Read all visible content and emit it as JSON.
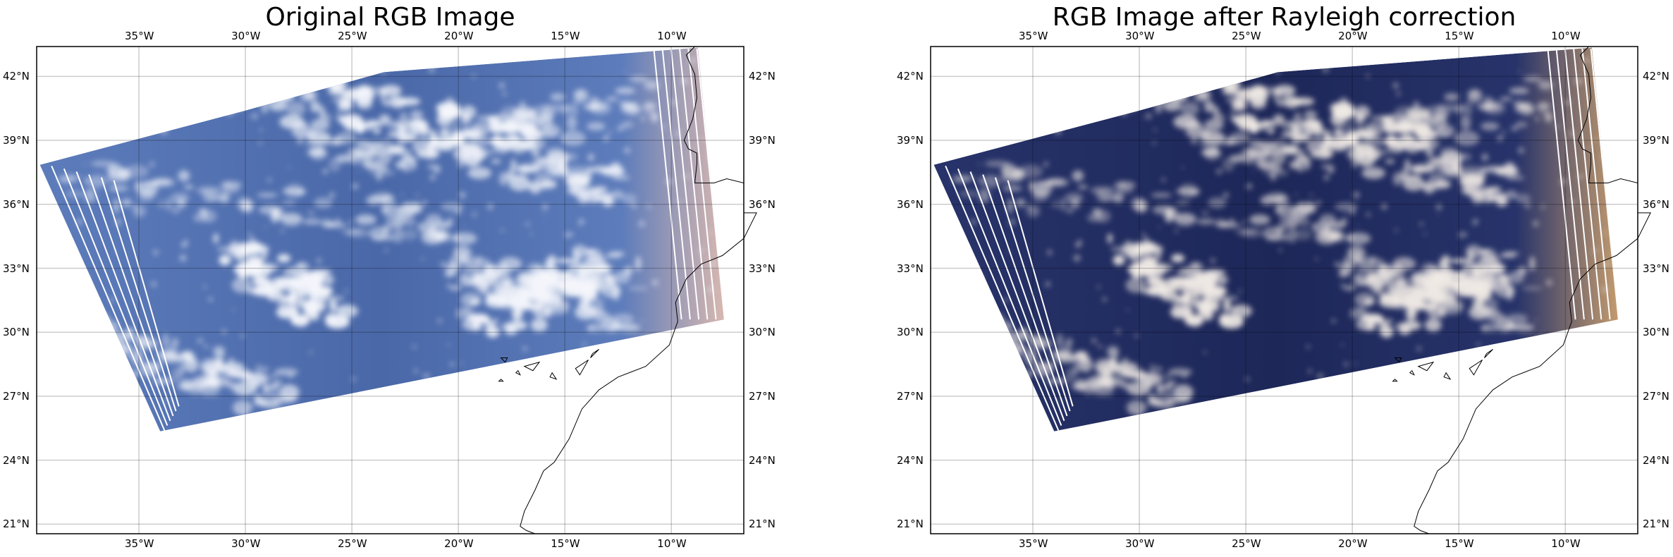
{
  "figure": {
    "panels": [
      {
        "title": "Original RGB Image",
        "ocean_color": "#4a68a8",
        "ocean_color_2": "#5d7cbb",
        "cloud_color": "#f4f6fb",
        "edge_tint": "#d8b8b0"
      },
      {
        "title": "RGB Image after Rayleigh correction",
        "ocean_color": "#1d2758",
        "ocean_color_2": "#27336a",
        "cloud_color": "#efe9e4",
        "edge_tint": "#c39b6e"
      }
    ],
    "map_extent": {
      "lon": [
        -39.8,
        -6.6
      ],
      "lat": [
        20.55,
        43.4
      ]
    },
    "gridlines": true,
    "lon_ticks": [
      {
        "value": -35,
        "label": "35°W"
      },
      {
        "value": -30,
        "label": "30°W"
      },
      {
        "value": -25,
        "label": "25°W"
      },
      {
        "value": -20,
        "label": "20°W"
      },
      {
        "value": -15,
        "label": "15°W"
      },
      {
        "value": -10,
        "label": "10°W"
      }
    ],
    "lat_ticks": [
      {
        "value": 42,
        "label": "42°N"
      },
      {
        "value": 39,
        "label": "39°N"
      },
      {
        "value": 36,
        "label": "36°N"
      },
      {
        "value": 33,
        "label": "33°N"
      },
      {
        "value": 30,
        "label": "30°N"
      },
      {
        "value": 27,
        "label": "27°N"
      },
      {
        "value": 24,
        "label": "24°N"
      },
      {
        "value": 21,
        "label": "21°N"
      }
    ]
  }
}
